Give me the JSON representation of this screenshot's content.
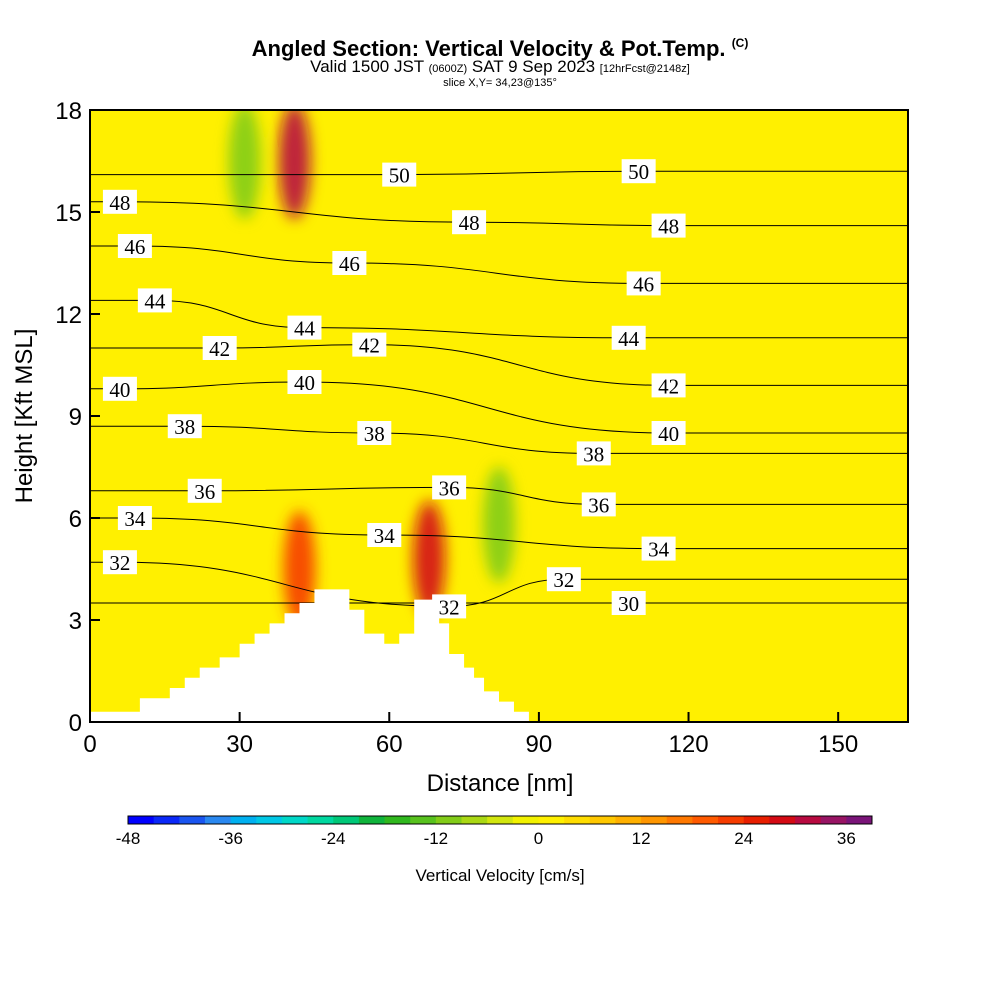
{
  "title": {
    "main": "Angled Section: Vertical Velocity & Pot.Temp.",
    "main_mark": "(C)",
    "valid_pre": "Valid 1500 JST",
    "valid_z": "(0600Z)",
    "valid_date": "SAT 9 Sep 2023",
    "valid_fcst": "[12hrFcst@2148z]",
    "slice": "slice X,Y= 34,23@135°"
  },
  "chart_data": {
    "type": "heatmap",
    "xlabel": "Distance [nm]",
    "ylabel": "Height [Kft MSL]",
    "xlim": [
      0,
      164
    ],
    "ylim": [
      0,
      18
    ],
    "x_ticks": [
      0,
      30,
      60,
      90,
      120,
      150
    ],
    "y_ticks": [
      0,
      3,
      6,
      9,
      12,
      15,
      18
    ],
    "fill": {
      "variable": "Vertical Velocity",
      "units": "cm/s",
      "colorbar_label": "Vertical Velocity [cm/s]",
      "colorbar_ticks": [
        -48,
        -36,
        -24,
        -12,
        0,
        12,
        24,
        36
      ],
      "levels": [
        -48,
        -45,
        -42,
        -39,
        -36,
        -33,
        -30,
        -27,
        -24,
        -21,
        -18,
        -15,
        -12,
        -9,
        -6,
        -3,
        0,
        3,
        6,
        9,
        12,
        15,
        18,
        21,
        24,
        27,
        30,
        33,
        36,
        39
      ],
      "colors": [
        "#0000ff",
        "#0a28f8",
        "#1a55f0",
        "#2a88f0",
        "#00b0f0",
        "#00c8e6",
        "#00d8c8",
        "#00d8a0",
        "#00c878",
        "#10b43c",
        "#30b81e",
        "#58c21e",
        "#82cc18",
        "#aad814",
        "#d2e60e",
        "#f2f200",
        "#fff000",
        "#ffdd00",
        "#ffc800",
        "#ffb000",
        "#ff9600",
        "#ff7800",
        "#ff5a00",
        "#f63c00",
        "#e81e00",
        "#d40a14",
        "#b80a40",
        "#981464",
        "#7a1478"
      ],
      "features": [
        {
          "name": "updraft-core-upper",
          "x": 41,
          "y": 16.5,
          "w": 32
        },
        {
          "name": "downdraft-upper",
          "x": 31,
          "y": 16.5,
          "w": -12
        },
        {
          "name": "updraft-lee-peak",
          "x": 68,
          "y": 4.8,
          "w": 27
        },
        {
          "name": "updraft-windward",
          "x": 42,
          "y": 4.5,
          "w": 21
        },
        {
          "name": "downdraft-wave",
          "x": 82,
          "y": 5.8,
          "w": -10
        }
      ]
    },
    "contours": {
      "variable": "Pot.Temp.",
      "units": "C",
      "interval": 1,
      "levels": [
        30,
        31,
        32,
        33,
        34,
        35,
        36,
        37,
        38,
        39,
        40,
        41,
        42,
        43,
        44,
        45,
        46,
        47,
        48,
        49,
        50
      ],
      "labeled_values": [
        {
          "label": "48",
          "x": 6,
          "y": 15.3
        },
        {
          "label": "46",
          "x": 9,
          "y": 14.0
        },
        {
          "label": "44",
          "x": 13,
          "y": 12.4
        },
        {
          "label": "42",
          "x": 26,
          "y": 11.0
        },
        {
          "label": "40",
          "x": 6,
          "y": 9.8
        },
        {
          "label": "38",
          "x": 19,
          "y": 8.7
        },
        {
          "label": "36",
          "x": 23,
          "y": 6.8
        },
        {
          "label": "34",
          "x": 9,
          "y": 6.0
        },
        {
          "label": "32",
          "x": 6,
          "y": 4.7
        },
        {
          "label": "50",
          "x": 62,
          "y": 16.1
        },
        {
          "label": "48",
          "x": 76,
          "y": 14.7
        },
        {
          "label": "46",
          "x": 52,
          "y": 13.5
        },
        {
          "label": "44",
          "x": 43,
          "y": 11.6
        },
        {
          "label": "42",
          "x": 56,
          "y": 11.1
        },
        {
          "label": "40",
          "x": 43,
          "y": 10.0
        },
        {
          "label": "38",
          "x": 57,
          "y": 8.5
        },
        {
          "label": "36",
          "x": 72,
          "y": 6.9
        },
        {
          "label": "34",
          "x": 59,
          "y": 5.5
        },
        {
          "label": "32",
          "x": 72,
          "y": 3.4
        },
        {
          "label": "50",
          "x": 110,
          "y": 16.2
        },
        {
          "label": "48",
          "x": 116,
          "y": 14.6
        },
        {
          "label": "46",
          "x": 111,
          "y": 12.9
        },
        {
          "label": "44",
          "x": 108,
          "y": 11.3
        },
        {
          "label": "42",
          "x": 116,
          "y": 9.9
        },
        {
          "label": "40",
          "x": 116,
          "y": 8.5
        },
        {
          "label": "38",
          "x": 101,
          "y": 7.9
        },
        {
          "label": "36",
          "x": 102,
          "y": 6.4
        },
        {
          "label": "34",
          "x": 114,
          "y": 5.1
        },
        {
          "label": "32",
          "x": 95,
          "y": 4.2
        },
        {
          "label": "30",
          "x": 108,
          "y": 3.5
        }
      ]
    },
    "terrain_kft": [
      [
        0,
        0.3
      ],
      [
        10,
        0.3
      ],
      [
        10,
        0.7
      ],
      [
        16,
        0.7
      ],
      [
        16,
        1.0
      ],
      [
        19,
        1.0
      ],
      [
        19,
        1.3
      ],
      [
        22,
        1.3
      ],
      [
        22,
        1.6
      ],
      [
        26,
        1.6
      ],
      [
        26,
        1.9
      ],
      [
        30,
        1.9
      ],
      [
        30,
        2.3
      ],
      [
        33,
        2.3
      ],
      [
        33,
        2.6
      ],
      [
        36,
        2.6
      ],
      [
        36,
        2.9
      ],
      [
        39,
        2.9
      ],
      [
        39,
        3.2
      ],
      [
        42,
        3.2
      ],
      [
        42,
        3.5
      ],
      [
        45,
        3.5
      ],
      [
        45,
        3.9
      ],
      [
        52,
        3.9
      ],
      [
        52,
        3.3
      ],
      [
        55,
        3.3
      ],
      [
        55,
        2.6
      ],
      [
        59,
        2.6
      ],
      [
        59,
        2.3
      ],
      [
        62,
        2.3
      ],
      [
        62,
        2.6
      ],
      [
        65,
        2.6
      ],
      [
        65,
        3.6
      ],
      [
        70,
        3.6
      ],
      [
        70,
        2.9
      ],
      [
        72,
        2.9
      ],
      [
        72,
        2.0
      ],
      [
        75,
        2.0
      ],
      [
        75,
        1.6
      ],
      [
        77,
        1.6
      ],
      [
        77,
        1.3
      ],
      [
        79,
        1.3
      ],
      [
        79,
        0.9
      ],
      [
        82,
        0.9
      ],
      [
        82,
        0.6
      ],
      [
        85,
        0.6
      ],
      [
        85,
        0.3
      ],
      [
        88,
        0.3
      ],
      [
        88,
        0
      ],
      [
        164,
        0
      ]
    ]
  }
}
